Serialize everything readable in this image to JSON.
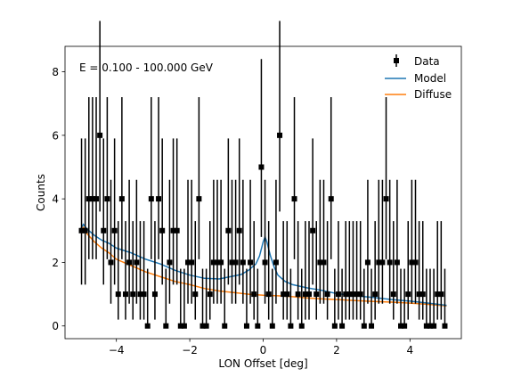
{
  "chart_data": {
    "type": "scatter",
    "annotation": "E = 0.100 - 100.000 GeV",
    "xlabel": "LON Offset [deg]",
    "ylabel": "Counts",
    "xlim": [
      -5.4,
      5.4
    ],
    "ylim": [
      -0.4,
      8.8
    ],
    "xticks": [
      -4,
      -2,
      0,
      2,
      4
    ],
    "xtick_labels": [
      "−4",
      "−2",
      "0",
      "2",
      "4"
    ],
    "yticks": [
      0,
      2,
      4,
      6,
      8
    ],
    "ytick_labels": [
      "0",
      "2",
      "4",
      "6",
      "8"
    ],
    "grid": false,
    "legend_position": "top-right",
    "legend": [
      {
        "label": "Data",
        "key": "data"
      },
      {
        "label": "Model",
        "key": "model"
      },
      {
        "label": "Diffuse",
        "key": "diffuse"
      }
    ],
    "colors": {
      "data": "#000000",
      "model": "#1f77b4",
      "diffuse": "#ff7f0e"
    },
    "series": [
      {
        "key": "data",
        "x": [
          -4.95,
          -4.85,
          -4.75,
          -4.65,
          -4.55,
          -4.45,
          -4.35,
          -4.25,
          -4.15,
          -4.05,
          -3.95,
          -3.85,
          -3.75,
          -3.65,
          -3.55,
          -3.45,
          -3.35,
          -3.25,
          -3.15,
          -3.05,
          -2.95,
          -2.85,
          -2.75,
          -2.65,
          -2.55,
          -2.45,
          -2.35,
          -2.25,
          -2.15,
          -2.05,
          -1.95,
          -1.85,
          -1.75,
          -1.65,
          -1.55,
          -1.45,
          -1.35,
          -1.25,
          -1.15,
          -1.05,
          -0.95,
          -0.85,
          -0.75,
          -0.65,
          -0.55,
          -0.45,
          -0.35,
          -0.25,
          -0.15,
          -0.05,
          0.05,
          0.15,
          0.25,
          0.35,
          0.45,
          0.55,
          0.65,
          0.75,
          0.85,
          0.95,
          1.05,
          1.15,
          1.25,
          1.35,
          1.45,
          1.55,
          1.65,
          1.75,
          1.85,
          1.95,
          2.05,
          2.15,
          2.25,
          2.35,
          2.45,
          2.55,
          2.65,
          2.75,
          2.85,
          2.95,
          3.05,
          3.15,
          3.25,
          3.35,
          3.45,
          3.55,
          3.65,
          3.75,
          3.85,
          3.95,
          4.05,
          4.15,
          4.25,
          4.35,
          4.45,
          4.55,
          4.65,
          4.75,
          4.85,
          4.95
        ],
        "y": [
          3,
          3,
          4,
          4,
          4,
          6,
          3,
          4,
          2,
          3,
          1,
          4,
          1,
          2,
          1,
          2,
          1,
          1,
          0,
          4,
          1,
          4,
          3,
          0,
          2,
          3,
          3,
          0,
          0,
          2,
          2,
          1,
          4,
          0,
          0,
          1,
          2,
          2,
          2,
          0,
          3,
          2,
          2,
          3,
          2,
          0,
          2,
          1,
          0,
          5,
          2,
          1,
          0,
          2,
          6,
          1,
          1,
          0,
          4,
          1,
          0,
          1,
          1,
          3,
          1,
          2,
          2,
          1,
          4,
          0,
          1,
          0,
          1,
          1,
          1,
          1,
          1,
          0,
          2,
          0,
          1,
          2,
          2,
          4,
          2,
          1,
          2,
          0,
          0,
          1,
          2,
          2,
          1,
          1,
          0,
          0,
          0,
          1,
          1,
          0
        ],
        "yerr_low": [
          1.7,
          1.7,
          1.9,
          1.9,
          1.9,
          2.4,
          1.7,
          1.9,
          1.3,
          1.7,
          0.8,
          1.9,
          0.8,
          1.3,
          0.8,
          1.3,
          0.8,
          0.8,
          0,
          1.9,
          0.8,
          1.9,
          1.7,
          0,
          1.3,
          1.7,
          1.7,
          0,
          0,
          1.3,
          1.3,
          0.8,
          1.9,
          0,
          0,
          0.8,
          1.3,
          1.3,
          1.3,
          0,
          1.7,
          1.3,
          1.3,
          1.7,
          1.3,
          0,
          1.3,
          0.8,
          0,
          2.2,
          1.3,
          0.8,
          0,
          1.3,
          2.4,
          0.8,
          0.8,
          0,
          1.9,
          0.8,
          0,
          0.8,
          0.8,
          1.7,
          0.8,
          1.3,
          1.3,
          0.8,
          1.9,
          0,
          0.8,
          0,
          0.8,
          0.8,
          0.8,
          0.8,
          0.8,
          0,
          1.3,
          0,
          0.8,
          1.3,
          1.3,
          1.9,
          1.3,
          0.8,
          1.3,
          0,
          0,
          0.8,
          1.3,
          1.3,
          0.8,
          0.8,
          0,
          0,
          0,
          0.8,
          0.8,
          0
        ],
        "yerr_high": [
          2.9,
          2.9,
          3.2,
          3.2,
          3.2,
          3.6,
          2.9,
          3.2,
          2.6,
          2.9,
          2.3,
          3.2,
          2.3,
          2.6,
          2.3,
          2.6,
          2.3,
          2.3,
          1.8,
          3.2,
          2.3,
          3.2,
          2.9,
          1.8,
          2.6,
          2.9,
          2.9,
          1.8,
          1.8,
          2.6,
          2.6,
          2.3,
          3.2,
          1.8,
          1.8,
          2.3,
          2.6,
          2.6,
          2.6,
          1.8,
          2.9,
          2.6,
          2.6,
          2.9,
          2.6,
          1.8,
          2.6,
          2.3,
          1.8,
          3.4,
          2.6,
          2.3,
          1.8,
          2.6,
          3.6,
          2.3,
          2.3,
          1.8,
          3.2,
          2.3,
          1.8,
          2.3,
          2.3,
          2.9,
          2.3,
          2.6,
          2.6,
          2.3,
          3.2,
          1.8,
          2.3,
          1.8,
          2.3,
          2.3,
          2.3,
          2.3,
          2.3,
          1.8,
          2.6,
          1.8,
          2.3,
          2.6,
          2.6,
          3.2,
          2.6,
          2.3,
          2.6,
          1.8,
          1.8,
          2.3,
          2.6,
          2.6,
          2.3,
          2.3,
          1.8,
          1.8,
          1.8,
          2.3,
          2.3,
          1.8
        ]
      },
      {
        "key": "model",
        "x": [
          -5.0,
          -4.9,
          -4.8,
          -4.6,
          -4.4,
          -4.2,
          -4.0,
          -3.6,
          -3.2,
          -2.8,
          -2.4,
          -2.0,
          -1.6,
          -1.2,
          -0.9,
          -0.6,
          -0.4,
          -0.2,
          -0.1,
          0.0,
          0.05,
          0.1,
          0.2,
          0.3,
          0.4,
          0.6,
          0.8,
          1.2,
          1.6,
          2.0,
          2.5,
          3.0,
          3.5,
          4.0,
          4.5,
          5.0
        ],
        "y": [
          3.0,
          3.2,
          3.05,
          2.85,
          2.7,
          2.6,
          2.45,
          2.3,
          2.1,
          1.95,
          1.75,
          1.6,
          1.5,
          1.48,
          1.55,
          1.62,
          1.75,
          1.95,
          2.2,
          2.65,
          2.8,
          2.65,
          2.2,
          1.85,
          1.6,
          1.4,
          1.3,
          1.2,
          1.12,
          1.02,
          0.95,
          0.9,
          0.83,
          0.78,
          0.72,
          0.65
        ]
      },
      {
        "key": "diffuse",
        "x": [
          -5.0,
          -4.9,
          -4.8,
          -4.6,
          -4.4,
          -4.2,
          -4.0,
          -3.6,
          -3.2,
          -2.8,
          -2.4,
          -2.0,
          -1.6,
          -1.2,
          -0.8,
          -0.4,
          0.0,
          0.4,
          0.8,
          1.2,
          1.6,
          2.0,
          2.5,
          3.0,
          3.5,
          4.0,
          4.5,
          5.0
        ],
        "y": [
          2.95,
          3.1,
          2.9,
          2.65,
          2.45,
          2.3,
          2.1,
          1.9,
          1.7,
          1.55,
          1.4,
          1.3,
          1.18,
          1.1,
          1.05,
          1.0,
          0.97,
          0.95,
          0.92,
          0.88,
          0.85,
          0.83,
          0.8,
          0.77,
          0.75,
          0.72,
          0.68,
          0.63
        ]
      }
    ]
  }
}
